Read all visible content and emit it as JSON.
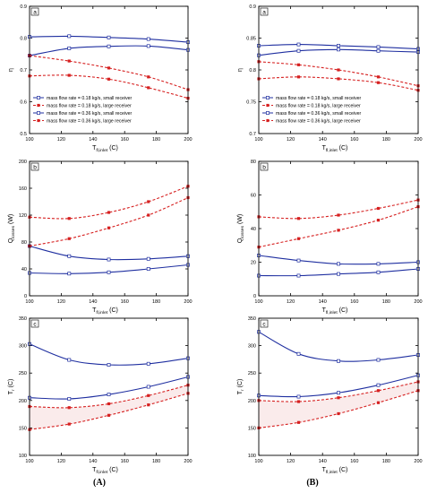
{
  "figure": {
    "captions": [
      "(A)",
      "(B)"
    ],
    "colors": {
      "small": "#1f2fa0",
      "large": "#d62020"
    }
  },
  "chart_data": [
    {
      "type": "line",
      "panel_label": "a",
      "ylabel": "η",
      "xlabel": "T_fl,inlet (C)",
      "xlim": [
        100,
        200
      ],
      "ylim": [
        0.5,
        0.9
      ],
      "xticks": [
        100,
        120,
        140,
        160,
        180,
        200
      ],
      "yticks": [
        0.5,
        0.6,
        0.7,
        0.8,
        0.9
      ],
      "legend": {
        "position": "lower-left",
        "entries": [
          "mass flow rate = 0.18  kg/s, small receiver",
          "mass flow rate = 0.18  kg/s, large receiver",
          "mass flow rate = 0.36  kg/s, small receiver",
          "mass flow rate = 0.36  kg/s, large receiver"
        ]
      },
      "series": [
        {
          "name": "mass flow rate = 0.18  kg/s, small receiver",
          "receiver": "small",
          "marker": "square",
          "x": [
            100,
            125,
            150,
            175,
            200
          ],
          "y": [
            0.745,
            0.768,
            0.774,
            0.775,
            0.763
          ]
        },
        {
          "name": "mass flow rate = 0.18  kg/s, large receiver",
          "receiver": "large",
          "marker": "square",
          "x": [
            100,
            125,
            150,
            175,
            200
          ],
          "y": [
            0.745,
            0.728,
            0.706,
            0.678,
            0.638
          ]
        },
        {
          "name": "mass flow rate = 0.36  kg/s, small receiver",
          "receiver": "small",
          "marker": "circle",
          "x": [
            100,
            125,
            150,
            175,
            200
          ],
          "y": [
            0.804,
            0.806,
            0.802,
            0.797,
            0.787
          ]
        },
        {
          "name": "mass flow rate = 0.36  kg/s, large receiver",
          "receiver": "large",
          "marker": "circle",
          "x": [
            100,
            125,
            150,
            175,
            200
          ],
          "y": [
            0.681,
            0.683,
            0.671,
            0.644,
            0.611
          ]
        }
      ]
    },
    {
      "type": "line",
      "panel_label": "a",
      "ylabel": "η",
      "xlabel": "T_fl,inlet (C)",
      "xlim": [
        100,
        200
      ],
      "ylim": [
        0.7,
        0.9
      ],
      "xticks": [
        100,
        120,
        140,
        160,
        180,
        200
      ],
      "yticks": [
        0.7,
        0.75,
        0.8,
        0.85,
        0.9
      ],
      "legend": {
        "position": "lower-left",
        "entries": [
          "mass flow rate = 0.18  kg/s, small receiver",
          "mass flow rate = 0.18  kg/s, large receiver",
          "mass flow rate = 0.36  kg/s, small receiver",
          "mass flow rate = 0.36  kg/s, large receiver"
        ]
      },
      "series": [
        {
          "name": "mass flow rate = 0.18  kg/s, small receiver",
          "receiver": "small",
          "marker": "square",
          "x": [
            100,
            125,
            150,
            175,
            200
          ],
          "y": [
            0.823,
            0.83,
            0.832,
            0.83,
            0.828
          ]
        },
        {
          "name": "mass flow rate = 0.18  kg/s, large receiver",
          "receiver": "large",
          "marker": "square",
          "x": [
            100,
            125,
            150,
            175,
            200
          ],
          "y": [
            0.813,
            0.808,
            0.8,
            0.789,
            0.775
          ]
        },
        {
          "name": "mass flow rate = 0.36  kg/s, small receiver",
          "receiver": "small",
          "marker": "circle",
          "x": [
            100,
            125,
            150,
            175,
            200
          ],
          "y": [
            0.838,
            0.84,
            0.838,
            0.836,
            0.833
          ]
        },
        {
          "name": "mass flow rate = 0.36  kg/s, large receiver",
          "receiver": "large",
          "marker": "circle",
          "x": [
            100,
            125,
            150,
            175,
            200
          ],
          "y": [
            0.786,
            0.789,
            0.786,
            0.78,
            0.768
          ]
        }
      ]
    },
    {
      "type": "line",
      "panel_label": "b",
      "ylabel": "Q_losses (W)",
      "xlabel": "T_fl,inlet (C)",
      "xlim": [
        100,
        200
      ],
      "ylim": [
        0,
        200
      ],
      "xticks": [
        100,
        120,
        140,
        160,
        180,
        200
      ],
      "yticks": [
        0,
        40,
        80,
        120,
        160,
        200
      ],
      "series": [
        {
          "receiver": "small",
          "marker": "square",
          "x": [
            100,
            125,
            150,
            175,
            200
          ],
          "y": [
            74,
            59,
            54,
            55,
            59
          ]
        },
        {
          "receiver": "large",
          "marker": "square",
          "x": [
            100,
            125,
            150,
            175,
            200
          ],
          "y": [
            74,
            85,
            101,
            120,
            146
          ]
        },
        {
          "receiver": "small",
          "marker": "circle",
          "x": [
            100,
            125,
            150,
            175,
            200
          ],
          "y": [
            34,
            33,
            35,
            40,
            46
          ]
        },
        {
          "receiver": "large",
          "marker": "circle",
          "x": [
            100,
            125,
            150,
            175,
            200
          ],
          "y": [
            117,
            115,
            124,
            140,
            163
          ]
        }
      ]
    },
    {
      "type": "line",
      "panel_label": "b",
      "ylabel": "Q_losses (W)",
      "xlabel": "T_fl,inlet (C)",
      "xlim": [
        100,
        200
      ],
      "ylim": [
        0,
        80
      ],
      "xticks": [
        100,
        120,
        140,
        160,
        180,
        200
      ],
      "yticks": [
        0,
        20,
        40,
        60,
        80
      ],
      "series": [
        {
          "receiver": "small",
          "marker": "square",
          "x": [
            100,
            125,
            150,
            175,
            200
          ],
          "y": [
            24,
            21,
            19,
            19,
            20
          ]
        },
        {
          "receiver": "large",
          "marker": "square",
          "x": [
            100,
            125,
            150,
            175,
            200
          ],
          "y": [
            29,
            34,
            39,
            45,
            53
          ]
        },
        {
          "receiver": "small",
          "marker": "circle",
          "x": [
            100,
            125,
            150,
            175,
            200
          ],
          "y": [
            12,
            12,
            13,
            14,
            16
          ]
        },
        {
          "receiver": "large",
          "marker": "circle",
          "x": [
            100,
            125,
            150,
            175,
            200
          ],
          "y": [
            47,
            46,
            48,
            52,
            57
          ]
        }
      ]
    },
    {
      "type": "line",
      "panel_label": "c",
      "ylabel": "T_r (C)",
      "xlabel": "T_fl,inlet (C)",
      "xlim": [
        100,
        200
      ],
      "ylim": [
        100,
        350
      ],
      "xticks": [
        100,
        120,
        140,
        160,
        180,
        200
      ],
      "yticks": [
        100,
        150,
        200,
        250,
        300,
        350
      ],
      "series": [
        {
          "receiver": "small",
          "marker": "square",
          "x": [
            100,
            125,
            150,
            175,
            200
          ],
          "y": [
            303,
            274,
            265,
            267,
            277
          ]
        },
        {
          "receiver": "large",
          "marker": "square",
          "x": [
            100,
            125,
            150,
            175,
            200
          ],
          "y": [
            147,
            157,
            173,
            192,
            213
          ]
        },
        {
          "receiver": "small",
          "marker": "circle",
          "x": [
            100,
            125,
            150,
            175,
            200
          ],
          "y": [
            205,
            203,
            211,
            225,
            243
          ]
        },
        {
          "receiver": "large",
          "marker": "circle",
          "x": [
            100,
            125,
            150,
            175,
            200
          ],
          "y": [
            189,
            187,
            194,
            209,
            228
          ]
        }
      ]
    },
    {
      "type": "line",
      "panel_label": "c",
      "ylabel": "T_r (C)",
      "xlabel": "T_fl,inlet (C)",
      "xlim": [
        100,
        200
      ],
      "ylim": [
        100,
        350
      ],
      "xticks": [
        100,
        120,
        140,
        160,
        180,
        200
      ],
      "yticks": [
        100,
        150,
        200,
        250,
        300,
        350
      ],
      "series": [
        {
          "receiver": "small",
          "marker": "square",
          "x": [
            100,
            125,
            150,
            175,
            200
          ],
          "y": [
            325,
            285,
            272,
            274,
            283
          ]
        },
        {
          "receiver": "large",
          "marker": "square",
          "x": [
            100,
            125,
            150,
            175,
            200
          ],
          "y": [
            150,
            160,
            176,
            196,
            218
          ]
        },
        {
          "receiver": "small",
          "marker": "circle",
          "x": [
            100,
            125,
            150,
            175,
            200
          ],
          "y": [
            209,
            207,
            214,
            228,
            246
          ]
        },
        {
          "receiver": "large",
          "marker": "circle",
          "x": [
            100,
            125,
            150,
            175,
            200
          ],
          "y": [
            200,
            198,
            205,
            218,
            234
          ]
        }
      ]
    }
  ]
}
